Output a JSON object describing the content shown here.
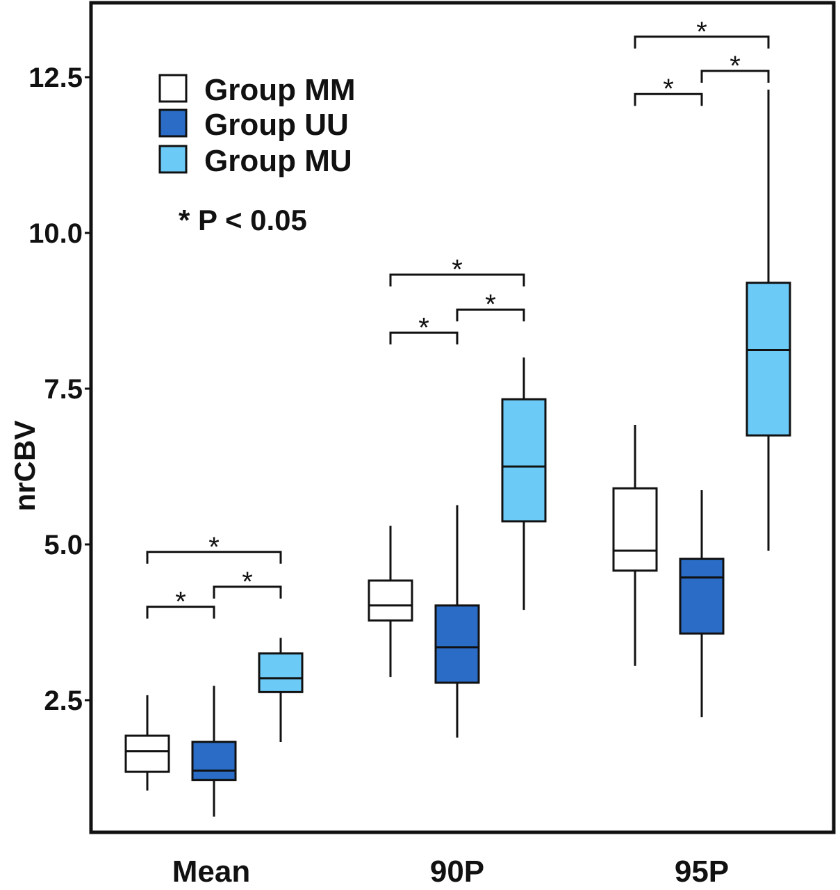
{
  "chart_data": {
    "type": "box",
    "title": "",
    "xlabel": "",
    "ylabel": "nrCBV",
    "ylim": [
      0.1,
      13.2
    ],
    "yticks": [
      2.5,
      5.0,
      7.5,
      10.0,
      12.5
    ],
    "ytick_labels": [
      "2.5",
      "5.0",
      "7.5",
      "10.0",
      "12.5"
    ],
    "categories": [
      "Mean",
      "90P",
      "95P"
    ],
    "grid": false,
    "legend_position": "top-left",
    "series": [
      {
        "name": "Group MM",
        "color": "#ffffff",
        "boxes": [
          {
            "min": 1.05,
            "q1": 1.35,
            "median": 1.68,
            "q3": 1.93,
            "max": 2.58
          },
          {
            "min": 2.87,
            "q1": 3.78,
            "median": 4.02,
            "q3": 4.42,
            "max": 5.3
          },
          {
            "min": 3.05,
            "q1": 4.58,
            "median": 4.9,
            "q3": 5.9,
            "max": 6.92
          }
        ]
      },
      {
        "name": "Group UU",
        "color": "#2a6cc6",
        "boxes": [
          {
            "min": 0.63,
            "q1": 1.22,
            "median": 1.37,
            "q3": 1.83,
            "max": 2.73
          },
          {
            "min": 1.9,
            "q1": 2.78,
            "median": 3.35,
            "q3": 4.02,
            "max": 5.63
          },
          {
            "min": 2.23,
            "q1": 3.57,
            "median": 4.47,
            "q3": 4.77,
            "max": 5.87
          }
        ]
      },
      {
        "name": "Group MU",
        "color": "#6ccaf7",
        "boxes": [
          {
            "min": 1.83,
            "q1": 2.63,
            "median": 2.85,
            "q3": 3.25,
            "max": 3.5
          },
          {
            "min": 3.95,
            "q1": 5.37,
            "median": 6.25,
            "q3": 7.33,
            "max": 8.0
          },
          {
            "min": 4.9,
            "q1": 6.75,
            "median": 8.12,
            "q3": 9.2,
            "max": 12.3
          }
        ]
      }
    ],
    "significance": [
      {
        "category": 0,
        "from": 0,
        "to": 1,
        "y": 4.0,
        "label": "*"
      },
      {
        "category": 0,
        "from": 1,
        "to": 2,
        "y": 4.32,
        "label": "*"
      },
      {
        "category": 0,
        "from": 0,
        "to": 2,
        "y": 4.88,
        "label": "*"
      },
      {
        "category": 1,
        "from": 0,
        "to": 1,
        "y": 8.4,
        "label": "*"
      },
      {
        "category": 1,
        "from": 1,
        "to": 2,
        "y": 8.77,
        "label": "*"
      },
      {
        "category": 1,
        "from": 0,
        "to": 2,
        "y": 9.33,
        "label": "*"
      },
      {
        "category": 2,
        "from": 0,
        "to": 1,
        "y": 12.23,
        "label": "*"
      },
      {
        "category": 2,
        "from": 1,
        "to": 2,
        "y": 12.6,
        "label": "*"
      },
      {
        "category": 2,
        "from": 0,
        "to": 2,
        "y": 13.15,
        "label": "*"
      }
    ],
    "annotation": "* P < 0.05"
  }
}
